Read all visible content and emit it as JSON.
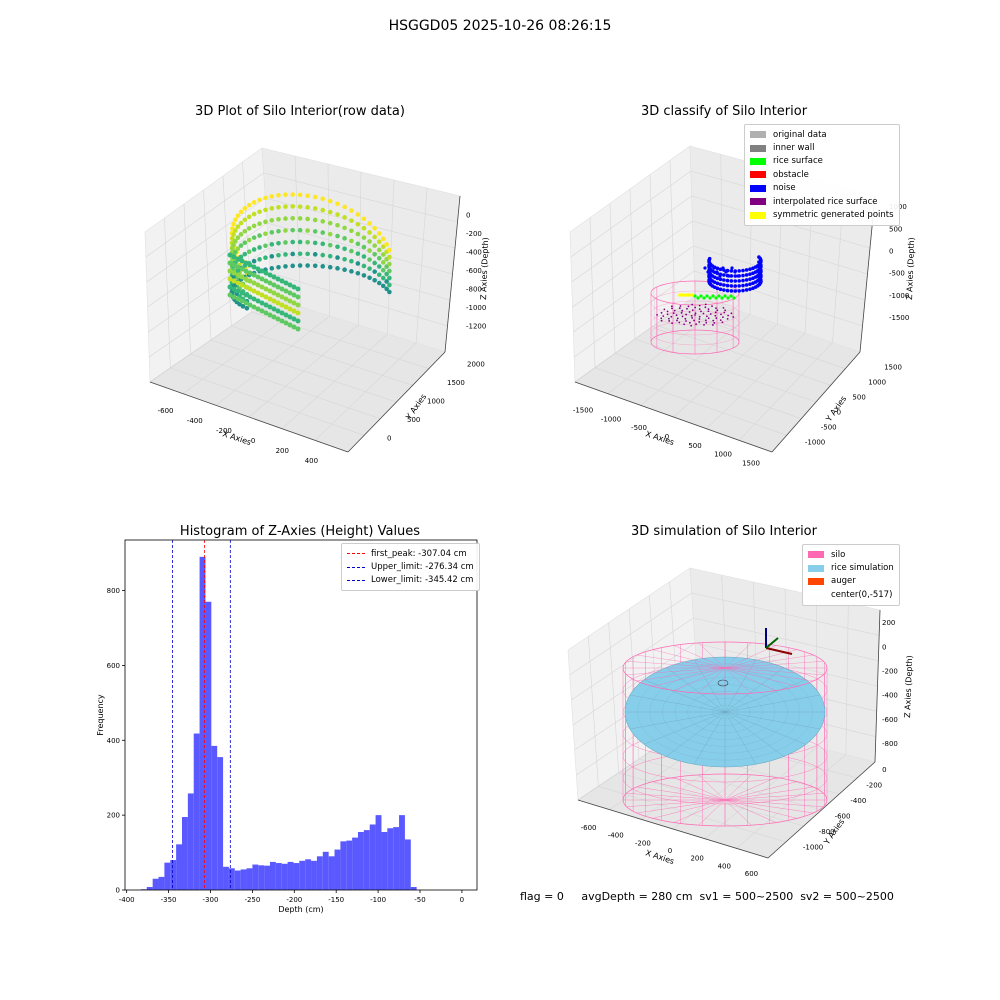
{
  "figure_title": "HSGGD05 2025-10-26 08:26:15",
  "footer_text": "flag = 0     avgDepth = 280 cm  sv1 = 500~2500  sv2 = 500~2500",
  "colors": {
    "histogram": "#5050ff",
    "first_peak": "#ff0000",
    "limits": "#0000cc"
  },
  "chart_data": [
    {
      "type": "scatter",
      "title": "3D Plot of Silo Interior(row data)",
      "xlabel": "X Axies",
      "ylabel": "Y Axies",
      "zlabel": "Z Axies (Depth)",
      "x_ticks": [
        "-600",
        "-400",
        "-200",
        "0",
        "200",
        "400"
      ],
      "y_ticks": [
        "0",
        "500",
        "1000",
        "1500",
        "2000"
      ],
      "z_ticks": [
        "0",
        "-200",
        "-400",
        "-600",
        "-800",
        "-1000",
        "-1200"
      ],
      "colormap": "viridis"
    },
    {
      "type": "scatter",
      "title": "3D classify of Silo Interior",
      "xlabel": "X Axies",
      "ylabel": "Y Axies",
      "zlabel": "Z Axies (Depth)",
      "x_ticks": [
        "-1500",
        "-1000",
        "-500",
        "0",
        "500",
        "1000",
        "1500"
      ],
      "y_ticks": [
        "-1000",
        "-500",
        "0",
        "500",
        "1000",
        "1500"
      ],
      "z_ticks": [
        "1000",
        "500",
        "0",
        "-500",
        "-1000",
        "-1500"
      ],
      "legend": [
        {
          "label": "original data",
          "color": "#b0b0b0"
        },
        {
          "label": "inner wall",
          "color": "#808080"
        },
        {
          "label": "rice surface",
          "color": "#00ff00"
        },
        {
          "label": "obstacle",
          "color": "#ff0000"
        },
        {
          "label": "noise",
          "color": "#0000ff"
        },
        {
          "label": "interpolated rice surface",
          "color": "#800080"
        },
        {
          "label": "symmetric generated points",
          "color": "#ffff00"
        }
      ]
    },
    {
      "type": "bar",
      "title": "Histogram of Z-Axies (Height) Values",
      "xlabel": "Depth (cm)",
      "ylabel": "Frequency",
      "xlim": [
        -402,
        18
      ],
      "ylim": [
        0,
        935
      ],
      "x_ticks": [
        -400,
        -350,
        -300,
        -250,
        -200,
        -150,
        -100,
        -50,
        0
      ],
      "y_ticks": [
        0,
        200,
        400,
        600,
        800
      ],
      "bin_start": -383,
      "bin_width": 7,
      "values": [
        2,
        8,
        30,
        35,
        73,
        80,
        122,
        195,
        258,
        418,
        890,
        770,
        385,
        355,
        62,
        58,
        52,
        55,
        58,
        68,
        66,
        65,
        75,
        72,
        70,
        75,
        72,
        78,
        82,
        78,
        90,
        102,
        90,
        108,
        130,
        132,
        140,
        155,
        160,
        175,
        200,
        155,
        165,
        168,
        200,
        135,
        8
      ],
      "vlines": [
        {
          "label": "first_peak: -307.04 cm",
          "x": -307.04,
          "color": "#ff0000"
        },
        {
          "label": "Upper_limit: -276.34 cm",
          "x": -276.34,
          "color": "#0000cc"
        },
        {
          "label": "Lower_limit: -345.42 cm",
          "x": -345.42,
          "color": "#0000cc"
        }
      ]
    },
    {
      "type": "scatter",
      "title": "3D simulation of Silo Interior",
      "xlabel": "X Axies",
      "ylabel": "Y Axies",
      "zlabel": "Z Axies (Depth)",
      "x_ticks": [
        "-600",
        "-400",
        "-200",
        "0",
        "200",
        "400",
        "600"
      ],
      "y_ticks": [
        "-1000",
        "-800",
        "-600",
        "-400",
        "-200",
        "0"
      ],
      "z_ticks": [
        "200",
        "0",
        "-200",
        "-400",
        "-600",
        "-800"
      ],
      "legend": [
        {
          "label": "silo",
          "color": "#ff69b4"
        },
        {
          "label": "rice simulation",
          "color": "#87ceeb"
        },
        {
          "label": "auger",
          "color": "#ff4500"
        },
        {
          "label": "center(0,-517)",
          "color": ""
        }
      ]
    }
  ]
}
